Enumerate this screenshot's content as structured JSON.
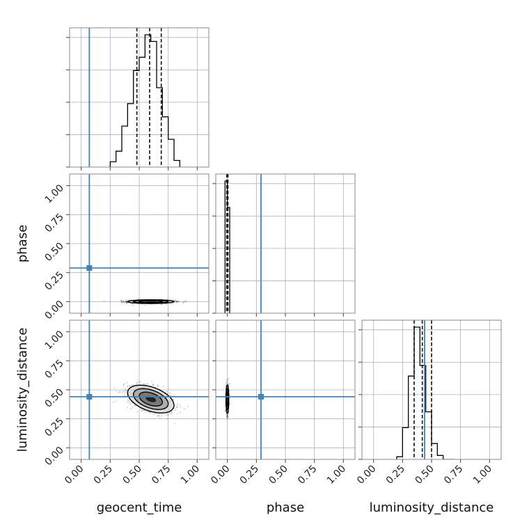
{
  "chart_data": {
    "type": "corner",
    "parameters": [
      "geocent_time",
      "phase",
      "luminosity_distance"
    ],
    "axis_range": [
      -0.1,
      1.1
    ],
    "ticks": [
      0.0,
      0.25,
      0.5,
      0.75,
      1.0
    ],
    "tick_labels": [
      "0.00",
      "0.25",
      "0.50",
      "0.75",
      "1.00"
    ],
    "grid": true,
    "truths": {
      "geocent_time": 0.07,
      "phase": 0.29,
      "luminosity_distance": 0.44
    },
    "truth_color": "#4682b4",
    "marginals": {
      "geocent_time": {
        "bin_edges": [
          0.25,
          0.3,
          0.35,
          0.4,
          0.45,
          0.5,
          0.55,
          0.6,
          0.65,
          0.7,
          0.75,
          0.8,
          0.85
        ],
        "counts": [
          0.04,
          0.12,
          0.31,
          0.48,
          0.73,
          0.83,
          1.0,
          0.95,
          0.6,
          0.38,
          0.21,
          0.05
        ],
        "quantiles": [
          0.48,
          0.59,
          0.69
        ]
      },
      "phase": {
        "bin_edges": [
          -0.02,
          0.0,
          0.02
        ],
        "counts": [
          1.0,
          0.8
        ],
        "quantiles": [
          -0.005,
          0.0,
          0.005
        ]
      },
      "luminosity_distance": {
        "bin_edges": [
          0.2,
          0.25,
          0.3,
          0.35,
          0.4,
          0.45,
          0.5,
          0.55,
          0.6,
          0.65,
          0.7
        ],
        "counts": [
          0.02,
          0.24,
          0.63,
          1.0,
          0.71,
          0.36,
          0.12,
          0.03,
          0.0,
          0.0
        ],
        "quantiles": [
          0.35,
          0.42,
          0.5
        ]
      }
    },
    "joint_2d": [
      {
        "x": "geocent_time",
        "y": "phase",
        "center": [
          0.6,
          0.0
        ],
        "sx": 0.1,
        "sy": 0.008,
        "rho": 0.0
      },
      {
        "x": "geocent_time",
        "y": "luminosity_distance",
        "center": [
          0.6,
          0.42
        ],
        "sx": 0.1,
        "sy": 0.06,
        "rho": -0.45
      },
      {
        "x": "phase",
        "y": "luminosity_distance",
        "center": [
          0.0,
          0.42
        ],
        "sx": 0.006,
        "sy": 0.06,
        "rho": 0.0
      }
    ]
  }
}
